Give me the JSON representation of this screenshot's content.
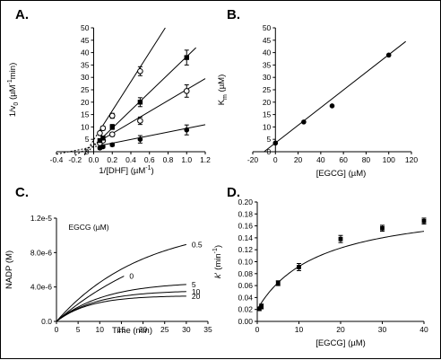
{
  "chart_data": [
    {
      "id": "A",
      "panel_label": "A.",
      "type": "line",
      "xlabel_main": "1/[DHF] (µM",
      "xlabel_sup": "-1",
      "xlabel_close": ")",
      "ylabel_main": "1/v",
      "ylabel_sub": "0",
      "ylabel_mid": " (µM",
      "ylabel_sup": "-1",
      "ylabel_close": "min)",
      "xlim": [
        -0.4,
        1.2
      ],
      "ylim": [
        0,
        50
      ],
      "xticks": [
        -0.4,
        -0.2,
        0.0,
        0.2,
        0.4,
        0.6,
        0.8,
        1.0,
        1.2
      ],
      "xtick_labels": [
        "-0.4",
        "-0.2",
        "0.0",
        "0.2",
        "0.4",
        "0.6",
        "0.8",
        "1.0",
        "1.2"
      ],
      "yticks": [
        0,
        5,
        10,
        15,
        20,
        25,
        30,
        35,
        40,
        45,
        50
      ],
      "ytick_labels": [
        "0",
        "5",
        "10",
        "15",
        "20",
        "25",
        "30",
        "35",
        "40",
        "45",
        "50"
      ],
      "series": [
        {
          "marker": "filled",
          "x": [
            0.0667,
            0.1,
            0.2,
            0.5,
            1.0
          ],
          "y": [
            1.5,
            2.0,
            2.8,
            5.0,
            8.8
          ],
          "err": [
            0.5,
            0.5,
            0.6,
            1.5,
            2.0
          ],
          "fit": {
            "x": [
              -0.4,
              1.2
            ],
            "y": [
              -1.0,
              10.9
            ]
          },
          "dashed_from": 0.05
        },
        {
          "marker": "open",
          "x": [
            0.0667,
            0.1,
            0.2,
            0.5,
            1.0
          ],
          "y": [
            3.5,
            4.5,
            7.0,
            12.5,
            24.5
          ],
          "err": [
            0.6,
            0.7,
            0.8,
            1.5,
            2.5
          ],
          "fit": {
            "x": [
              -0.2,
              1.2
            ],
            "y": [
              -1.5,
              29.5
            ]
          },
          "dashed_from": 0.05
        },
        {
          "marker": "filled-square",
          "x": [
            0.0667,
            0.1,
            0.2,
            0.5,
            1.0
          ],
          "y": [
            4.5,
            5.5,
            10.0,
            20.0,
            38.0
          ],
          "err": [
            0.7,
            0.8,
            1.0,
            1.8,
            3.0
          ],
          "fit": {
            "x": [
              -0.1,
              1.1
            ],
            "y": [
              -1.3,
              42.0
            ]
          },
          "dashed_from": 0.05
        },
        {
          "marker": "open",
          "x": [
            0.0667,
            0.1,
            0.2,
            0.5
          ],
          "y": [
            7.5,
            9.5,
            14.5,
            32.5
          ],
          "err": [
            0.7,
            0.8,
            1.0,
            1.8
          ],
          "fit": {
            "x": [
              -0.1,
              0.77
            ],
            "y": [
              -1.1,
              50.0
            ]
          },
          "dashed_from": 0.05
        }
      ]
    },
    {
      "id": "B",
      "panel_label": "B.",
      "type": "scatter",
      "xlabel": "[EGCG] (µM)",
      "ylabel_main": "K",
      "ylabel_sub": "m",
      "ylabel_close": " (µM)",
      "xlim": [
        -20,
        120
      ],
      "ylim": [
        0,
        50
      ],
      "xticks": [
        -20,
        0,
        20,
        40,
        60,
        80,
        100,
        120
      ],
      "xtick_labels": [
        "-20",
        "0",
        "20",
        "40",
        "60",
        "80",
        "100",
        "120"
      ],
      "yticks": [
        0,
        5,
        10,
        15,
        20,
        25,
        30,
        35,
        40,
        45,
        50
      ],
      "ytick_labels": [
        "0",
        "5",
        "10",
        "15",
        "20",
        "25",
        "30",
        "35",
        "40",
        "45",
        "50"
      ],
      "points": {
        "x": [
          0,
          25,
          50,
          100
        ],
        "y": [
          3.5,
          12.0,
          18.5,
          39.0
        ]
      },
      "fit": {
        "x": [
          -10,
          115
        ],
        "y": [
          0,
          44.5
        ]
      }
    },
    {
      "id": "C",
      "panel_label": "C.",
      "type": "line",
      "xlabel": "Time (min)",
      "ylabel": "NADP (M)",
      "xlim": [
        0,
        35
      ],
      "ylim": [
        0,
        1.2e-05
      ],
      "xticks": [
        0,
        5,
        10,
        15,
        20,
        25,
        30,
        35
      ],
      "xtick_labels": [
        "0",
        "5",
        "10",
        "15",
        "20",
        "25",
        "30",
        "35"
      ],
      "yticks": [
        0,
        4e-06,
        8e-06,
        1.2e-05
      ],
      "ytick_labels": [
        "0.0",
        "4.0e-6",
        "8.0e-6",
        "1.2e-5"
      ],
      "legend_title": "EGCG (µM)",
      "series": [
        {
          "name": "0",
          "a": 1.2e-05,
          "k": 0.037,
          "x_end": 15.6
        },
        {
          "name": "0.5",
          "a": 1.15e-05,
          "k": 0.05,
          "x_end": 30
        },
        {
          "name": "5",
          "a": 4.6e-06,
          "k": 0.09,
          "x_end": 30
        },
        {
          "name": "10",
          "a": 3.6e-06,
          "k": 0.11,
          "x_end": 30
        },
        {
          "name": "20",
          "a": 3e-06,
          "k": 0.13,
          "x_end": 30
        }
      ]
    },
    {
      "id": "D",
      "panel_label": "D.",
      "type": "scatter",
      "xlabel": "[EGCG] (µM)",
      "ylabel_main": "k",
      "ylabel_prime": "'",
      "ylabel_mid": " (min",
      "ylabel_sup": "-1",
      "ylabel_close": ")",
      "xlim": [
        0,
        40
      ],
      "ylim": [
        0,
        0.2
      ],
      "xticks": [
        0,
        10,
        20,
        30,
        40
      ],
      "xtick_labels": [
        "0",
        "10",
        "20",
        "30",
        "40"
      ],
      "yticks": [
        0,
        0.02,
        0.04,
        0.06,
        0.08,
        0.1,
        0.12,
        0.14,
        0.16,
        0.18,
        0.2
      ],
      "ytick_labels": [
        "0.00",
        "0.02",
        "0.04",
        "0.06",
        "0.08",
        "0.10",
        "0.12",
        "0.14",
        "0.16",
        "0.18",
        "0.20"
      ],
      "points": {
        "x": [
          0.5,
          1,
          5,
          10,
          20,
          30,
          40
        ],
        "y": [
          0.021,
          0.025,
          0.064,
          0.091,
          0.138,
          0.156,
          0.168
        ],
        "err": [
          0.003,
          0.004,
          0.004,
          0.006,
          0.006,
          0.005,
          0.005
        ]
      },
      "fit": {
        "k0": 0.02,
        "kmax": 0.2,
        "K": 15
      }
    }
  ]
}
